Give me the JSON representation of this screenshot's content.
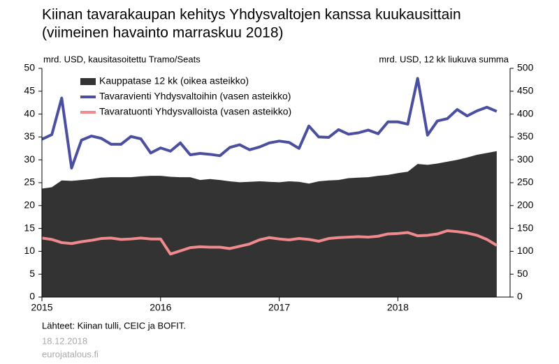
{
  "chart_data": {
    "type": "line",
    "title": "Kiinan tavarakaupan kehitys Yhdysvaltojen kanssa kuukausittain",
    "subtitle": "(viimeinen havainto marraskuu 2018)",
    "y_label": "mrd. USD, kausitasoitettu Tramo/Seats",
    "y2_label": "mrd. USD, 12 kk liukuva summa",
    "source": "Lähteet: Kiinan tulli, CEIC ja BOFIT.",
    "date": "18.12.2018",
    "site": "eurojatalous.fi",
    "categories": [
      "2015",
      null,
      null,
      null,
      null,
      null,
      null,
      null,
      null,
      null,
      null,
      null,
      "2016",
      null,
      null,
      null,
      null,
      null,
      null,
      null,
      null,
      null,
      null,
      null,
      "2017",
      null,
      null,
      null,
      null,
      null,
      null,
      null,
      null,
      null,
      null,
      null,
      "2018",
      null,
      null,
      null,
      null,
      null,
      null,
      null,
      null,
      null,
      null
    ],
    "ylim": [
      0,
      50
    ],
    "yticks": [
      0,
      5,
      10,
      15,
      20,
      25,
      30,
      35,
      40,
      45,
      50
    ],
    "y2lim": [
      0,
      500
    ],
    "y2ticks": [
      0,
      50,
      100,
      150,
      200,
      250,
      300,
      350,
      400,
      450,
      500
    ],
    "legend": "upper left",
    "series": [
      {
        "name": "Kauppatase 12 kk (oikea asteikko)",
        "type": "area",
        "axis": "y2",
        "color": "#333333",
        "values": [
          237,
          240,
          255,
          254,
          256,
          258,
          261,
          262,
          262,
          262,
          264,
          265,
          265,
          263,
          262,
          262,
          256,
          258,
          256,
          253,
          251,
          252,
          253,
          252,
          251,
          253,
          252,
          248,
          253,
          255,
          256,
          260,
          261,
          262,
          265,
          267,
          271,
          274,
          291,
          289,
          292,
          296,
          300,
          305,
          311,
          315,
          319
        ]
      },
      {
        "name": "Tavaravienti Yhdysvaltoihin (vasen asteikko)",
        "type": "line",
        "color": "#4a4fa0",
        "values": [
          34.5,
          35.5,
          43.5,
          28.2,
          34.3,
          35.2,
          34.7,
          33.4,
          33.4,
          35.1,
          34.6,
          31.5,
          32.6,
          31.9,
          33.7,
          31.1,
          31.4,
          31.2,
          30.9,
          32.7,
          33.3,
          32.2,
          32.8,
          33.7,
          34.1,
          33.8,
          32.5,
          37.4,
          35.0,
          34.9,
          36.6,
          35.6,
          35.9,
          36.5,
          35.7,
          38.3,
          38.3,
          37.8,
          47.8,
          35.4,
          38.5,
          39.0,
          41.0,
          39.6,
          40.7,
          41.5,
          40.6
        ]
      },
      {
        "name": "Tavaratuonti Yhdysvalloista (vasen asteikko)",
        "type": "line",
        "color": "#f08a8f",
        "values": [
          12.9,
          12.6,
          11.9,
          11.7,
          12.1,
          12.4,
          12.8,
          12.9,
          12.6,
          12.7,
          12.9,
          12.7,
          12.7,
          9.4,
          10.1,
          10.8,
          11.0,
          10.9,
          10.9,
          10.6,
          11.1,
          11.6,
          12.5,
          13.0,
          12.7,
          12.5,
          12.8,
          12.6,
          12.2,
          12.8,
          13.0,
          13.1,
          13.2,
          13.1,
          13.3,
          13.8,
          13.9,
          14.1,
          13.4,
          13.5,
          13.8,
          14.5,
          14.3,
          14.0,
          13.5,
          12.6,
          11.3
        ]
      }
    ]
  }
}
